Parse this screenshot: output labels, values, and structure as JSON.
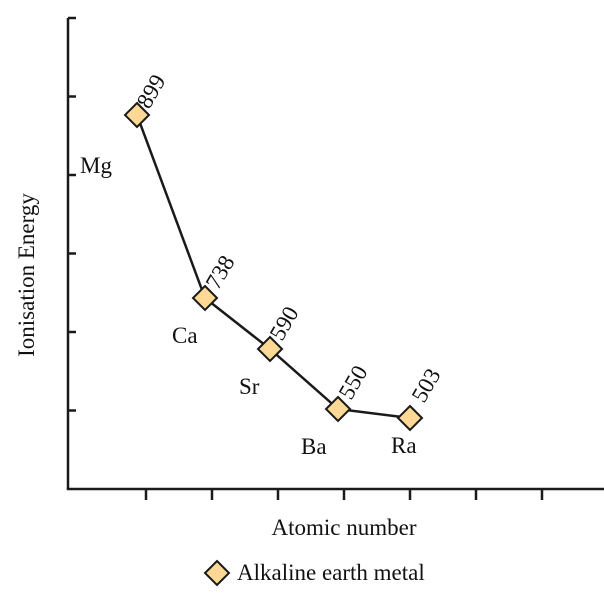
{
  "chart_data": {
    "type": "line",
    "title": "",
    "xlabel": "Atomic number",
    "ylabel": "Ionisation Energy",
    "legend_position": "bottom-center",
    "grid": false,
    "x_ticks": 7,
    "y_ticks": 6,
    "series": [
      {
        "name": "Alkaline earth metal",
        "marker": "diamond",
        "marker_color": "#FDD995",
        "line_color": "#1a1a1a",
        "points": [
          {
            "x": 1,
            "element": "Mg",
            "value": 899,
            "label": "899"
          },
          {
            "x": 2,
            "element": "Ca",
            "value": 738,
            "label": "738"
          },
          {
            "x": 3,
            "element": "Sr",
            "value": 590,
            "label": "590"
          },
          {
            "x": 4,
            "element": "Ba",
            "value": 550,
            "label": "550"
          },
          {
            "x": 5,
            "element": "Ra",
            "value": 503,
            "label": "503"
          }
        ]
      }
    ]
  }
}
